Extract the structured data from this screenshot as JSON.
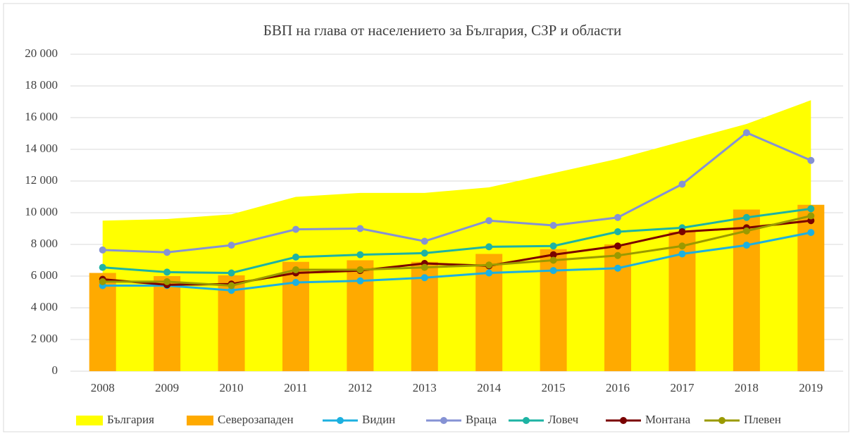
{
  "chart_data": {
    "type": "combo",
    "title": "БВП на глава от населението за България, СЗР и области",
    "categories": [
      "2008",
      "2009",
      "2010",
      "2011",
      "2012",
      "2013",
      "2014",
      "2015",
      "2016",
      "2017",
      "2018",
      "2019"
    ],
    "ylim": [
      0,
      20000
    ],
    "yticks": [
      0,
      {
        "value": 2000,
        "label": "2 000"
      },
      {
        "value": 4000,
        "label": "4 000"
      },
      {
        "value": 6000,
        "label": "6 000"
      },
      {
        "value": 8000,
        "label": "8 000"
      },
      {
        "value": 10000,
        "label": "10 000"
      },
      {
        "value": 12000,
        "label": "12 000"
      },
      {
        "value": 14000,
        "label": "14 000"
      },
      {
        "value": 16000,
        "label": "16 000"
      },
      {
        "value": 18000,
        "label": "18 000"
      },
      {
        "value": 20000,
        "label": "20 000"
      }
    ],
    "grid": true,
    "legend": "bottom",
    "series": [
      {
        "name": "България",
        "type": "area",
        "color": "#ffff00",
        "values": [
          9500,
          9600,
          9900,
          11000,
          11250,
          11250,
          11600,
          12500,
          13400,
          14500,
          15600,
          17100
        ]
      },
      {
        "name": "Северозападен",
        "type": "bar",
        "color": "#ffaa00",
        "values": [
          6200,
          6000,
          6050,
          6900,
          7000,
          6900,
          7400,
          7700,
          8000,
          8800,
          10200,
          10500
        ]
      },
      {
        "name": "Видин",
        "type": "line",
        "color": "#1cb0e0",
        "values": [
          5400,
          5400,
          5100,
          5600,
          5700,
          5900,
          6200,
          6350,
          6500,
          7400,
          7950,
          8750
        ]
      },
      {
        "name": "Враца",
        "type": "line",
        "color": "#8592d4",
        "values": [
          7650,
          7500,
          7950,
          8950,
          9000,
          8200,
          9500,
          9200,
          9700,
          11800,
          15050,
          13300
        ]
      },
      {
        "name": "Ловеч",
        "type": "line",
        "color": "#1db3a3",
        "values": [
          6550,
          6250,
          6200,
          7200,
          7350,
          7450,
          7850,
          7900,
          8800,
          9050,
          9700,
          10250
        ]
      },
      {
        "name": "Монтана",
        "type": "line",
        "color": "#7a0000",
        "values": [
          5800,
          5450,
          5500,
          6200,
          6350,
          6800,
          6650,
          7350,
          7900,
          8800,
          9050,
          9500
        ]
      },
      {
        "name": "Плевен",
        "type": "line",
        "color": "#9a9a00",
        "values": [
          5650,
          5650,
          5400,
          6400,
          6400,
          6550,
          6700,
          7000,
          7300,
          7900,
          8850,
          9800
        ]
      }
    ]
  }
}
